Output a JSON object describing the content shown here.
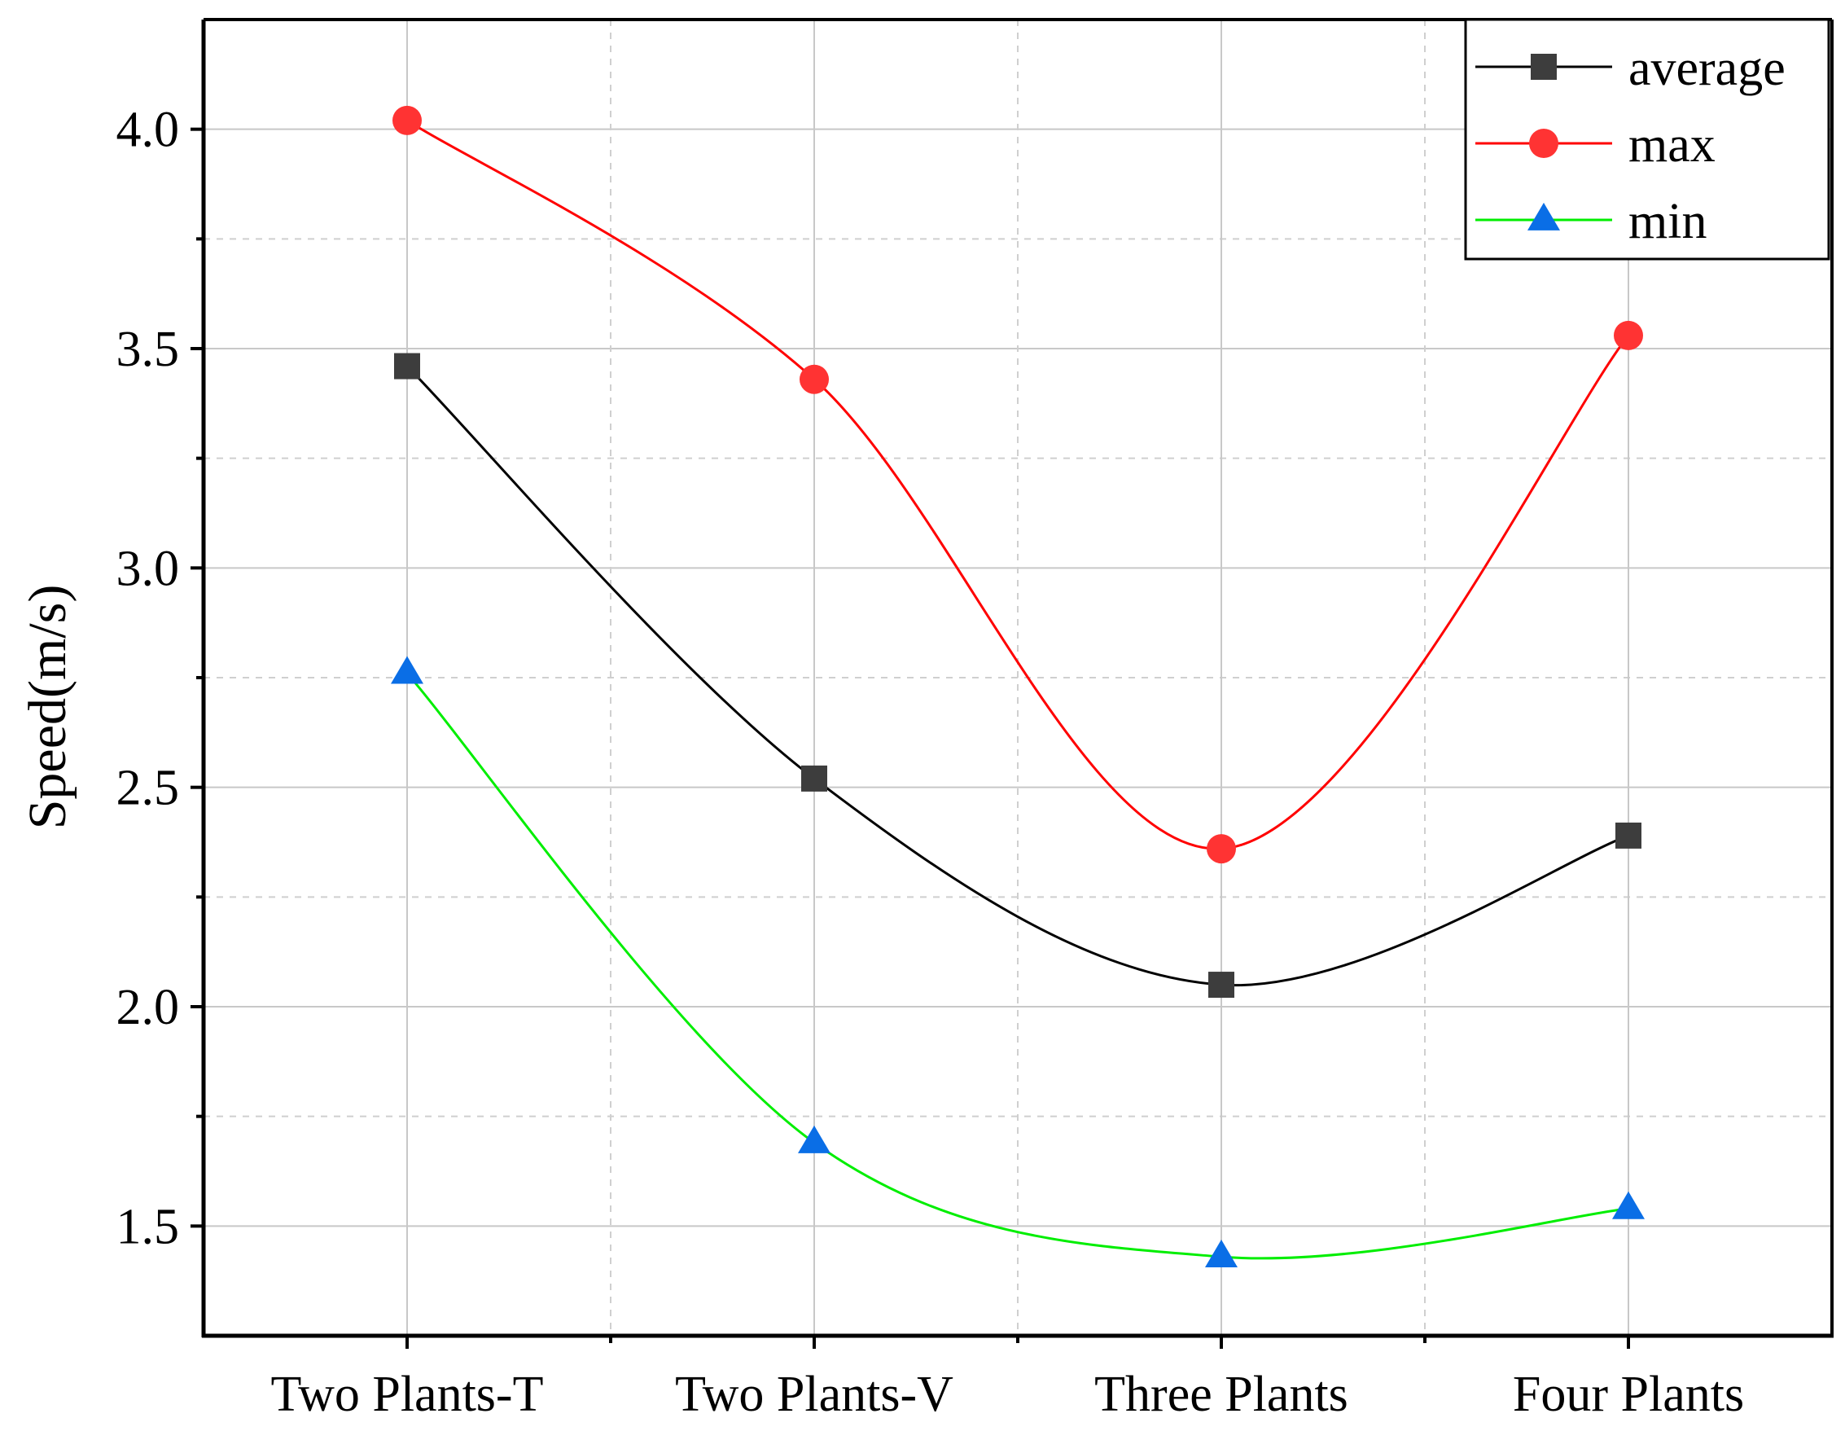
{
  "chart_data": {
    "type": "line",
    "title": "",
    "xlabel": "",
    "ylabel": "Speed(m/s)",
    "categories": [
      "Two Plants-T",
      "Two Plants-V",
      "Three Plants",
      "Four Plants"
    ],
    "ylim": [
      1.25,
      4.25
    ],
    "yticks": [
      "1.5",
      "2.0",
      "2.5",
      "3.0",
      "3.5",
      "4.0"
    ],
    "grid": true,
    "legend_position": "top-right",
    "series": [
      {
        "name": "average",
        "values": [
          3.46,
          2.52,
          2.05,
          2.39
        ],
        "color": "#000000",
        "marker_color": "#3d3d3d",
        "marker": "square"
      },
      {
        "name": "max",
        "values": [
          4.02,
          3.43,
          2.36,
          3.53
        ],
        "color": "#ff0000",
        "marker_color": "#ff3333",
        "marker": "circle"
      },
      {
        "name": "min",
        "values": [
          2.76,
          1.69,
          1.43,
          1.54
        ],
        "color": "#00ee00",
        "marker_color": "#0a6ee6",
        "marker": "triangle"
      }
    ]
  }
}
